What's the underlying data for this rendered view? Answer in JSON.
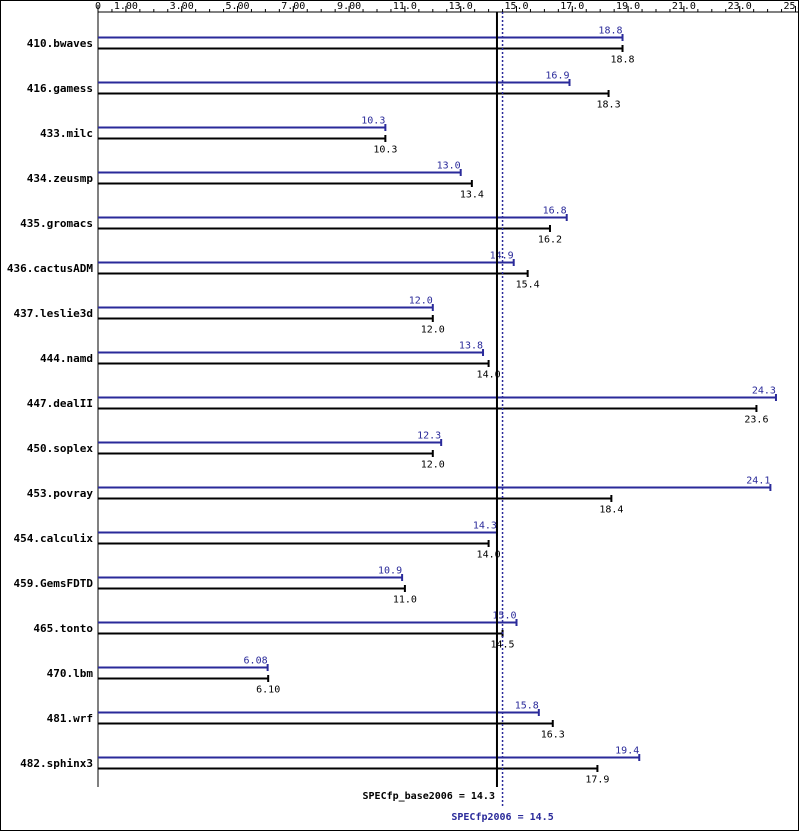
{
  "chart_data": {
    "type": "bar",
    "orientation": "horizontal",
    "title": "",
    "xlabel": "",
    "ylabel": "",
    "xlim": [
      0,
      25.5
    ],
    "x_ticks": [
      {
        "value": 0,
        "label": "0"
      },
      {
        "value": 1,
        "label": "1.00"
      },
      {
        "value": 3,
        "label": "3.00"
      },
      {
        "value": 5,
        "label": "5.00"
      },
      {
        "value": 7,
        "label": "7.00"
      },
      {
        "value": 9,
        "label": "9.00"
      },
      {
        "value": 11,
        "label": "11.0"
      },
      {
        "value": 13,
        "label": "13.0"
      },
      {
        "value": 15,
        "label": "15.0"
      },
      {
        "value": 17,
        "label": "17.0"
      },
      {
        "value": 19,
        "label": "19.0"
      },
      {
        "value": 21,
        "label": "21.0"
      },
      {
        "value": 23,
        "label": "23.0"
      },
      {
        "value": 25,
        "label": "25.0"
      }
    ],
    "minor_tick_step": 0.5,
    "categories": [
      "410.bwaves",
      "416.gamess",
      "433.milc",
      "434.zeusmp",
      "435.gromacs",
      "436.cactusADM",
      "437.leslie3d",
      "444.namd",
      "447.dealII",
      "450.soplex",
      "453.povray",
      "454.calculix",
      "459.GemsFDTD",
      "465.tonto",
      "470.lbm",
      "481.wrf",
      "482.sphinx3"
    ],
    "series": [
      {
        "key": "peak",
        "color": "#2a2a9a",
        "values": [
          18.8,
          16.9,
          10.3,
          13.0,
          16.8,
          14.9,
          12.0,
          13.8,
          24.3,
          12.3,
          24.1,
          14.3,
          10.9,
          15.0,
          6.08,
          15.8,
          19.4
        ],
        "labels": [
          "18.8",
          "16.9",
          "10.3",
          "13.0",
          "16.8",
          "14.9",
          "12.0",
          "13.8",
          "24.3",
          "12.3",
          "24.1",
          "14.3",
          "10.9",
          "15.0",
          "6.08",
          "15.8",
          "19.4"
        ]
      },
      {
        "key": "base",
        "color": "#000000",
        "values": [
          18.8,
          18.3,
          10.3,
          13.4,
          16.2,
          15.4,
          12.0,
          14.0,
          23.6,
          12.0,
          18.4,
          14.0,
          11.0,
          14.5,
          6.1,
          16.3,
          17.9
        ],
        "labels": [
          "18.8",
          "18.3",
          "10.3",
          "13.4",
          "16.2",
          "15.4",
          "12.0",
          "14.0",
          "23.6",
          "12.0",
          "18.4",
          "14.0",
          "11.0",
          "14.5",
          "6.10",
          "16.3",
          "17.9"
        ]
      }
    ],
    "reference_lines": [
      {
        "key": "base",
        "value": 14.3,
        "style": "solid",
        "color": "#000000"
      },
      {
        "key": "peak",
        "value": 14.5,
        "style": "dotted",
        "color": "#2a2a9a"
      }
    ],
    "grid": false,
    "legend": "none"
  },
  "summary": {
    "base_text": "SPECfp_base2006 = 14.3",
    "peak_text": "SPECfp2006 = 14.5"
  }
}
